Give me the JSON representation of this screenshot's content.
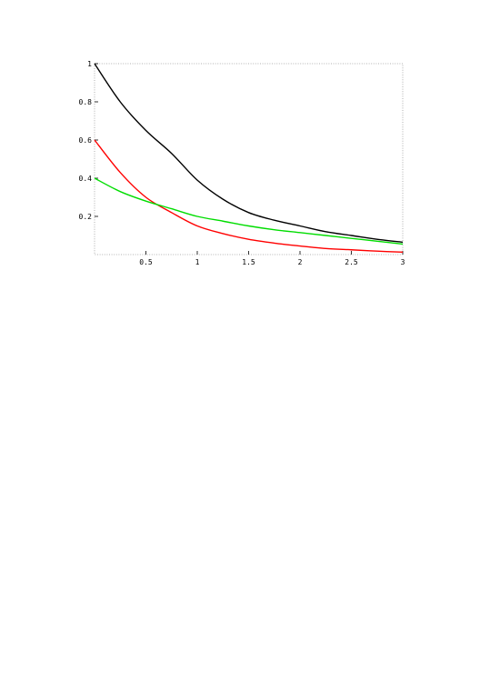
{
  "chart_data": {
    "type": "line",
    "title": "",
    "xlabel": "",
    "ylabel": "",
    "xlim": [
      0,
      3
    ],
    "ylim": [
      0,
      1
    ],
    "x_ticks": [
      {
        "value": 0.5,
        "label": "0.5"
      },
      {
        "value": 1,
        "label": "1"
      },
      {
        "value": 1.5,
        "label": "1.5"
      },
      {
        "value": 2,
        "label": "2"
      },
      {
        "value": 2.5,
        "label": "2.5"
      },
      {
        "value": 3,
        "label": "3"
      }
    ],
    "y_ticks": [
      {
        "value": 0.2,
        "label": "0.2"
      },
      {
        "value": 0.4,
        "label": "0.4"
      },
      {
        "value": 0.6,
        "label": "0.6"
      },
      {
        "value": 0.8,
        "label": "0.8"
      },
      {
        "value": 1,
        "label": "1"
      }
    ],
    "grid": false,
    "series": [
      {
        "color": "#000000",
        "x": [
          0,
          0.25,
          0.5,
          0.75,
          1.0,
          1.25,
          1.5,
          1.75,
          2.0,
          2.25,
          2.5,
          2.75,
          3.0
        ],
        "y": [
          1.0,
          0.8,
          0.65,
          0.53,
          0.39,
          0.29,
          0.22,
          0.18,
          0.15,
          0.12,
          0.1,
          0.08,
          0.065
        ]
      },
      {
        "color": "#ff0000",
        "x": [
          0,
          0.25,
          0.5,
          0.75,
          1.0,
          1.25,
          1.5,
          1.75,
          2.0,
          2.25,
          2.5,
          2.75,
          3.0
        ],
        "y": [
          0.6,
          0.43,
          0.3,
          0.22,
          0.15,
          0.11,
          0.08,
          0.06,
          0.045,
          0.032,
          0.025,
          0.018,
          0.013
        ]
      },
      {
        "color": "#00dd00",
        "x": [
          0,
          0.25,
          0.5,
          0.75,
          1.0,
          1.25,
          1.5,
          1.75,
          2.0,
          2.25,
          2.5,
          2.75,
          3.0
        ],
        "y": [
          0.4,
          0.33,
          0.28,
          0.24,
          0.2,
          0.175,
          0.15,
          0.13,
          0.115,
          0.1,
          0.085,
          0.07,
          0.055
        ]
      }
    ]
  }
}
